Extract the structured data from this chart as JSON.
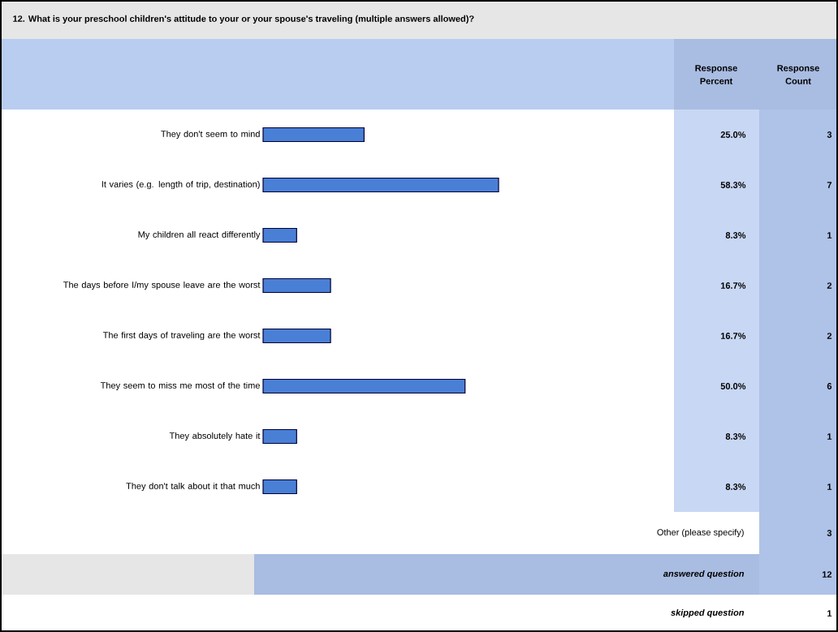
{
  "chart_data": {
    "type": "bar",
    "orientation": "horizontal",
    "title": "12. What is your preschool children's attitude to your or your spouse's traveling (multiple answers allowed)?",
    "categories": [
      "They don't seem to mind",
      "It varies (e.g. length of trip, destination)",
      "My children all react differently",
      "The days before I/my spouse leave are the worst",
      "The first days of traveling are the worst",
      "They seem to miss me most of the time",
      "They absolutely hate it",
      "They don't talk about it that much"
    ],
    "values": [
      25.0,
      58.3,
      8.3,
      16.7,
      16.7,
      50.0,
      8.3,
      8.3
    ],
    "value_labels": [
      "25.0%",
      "58.3%",
      "8.3%",
      "16.7%",
      "16.7%",
      "50.0%",
      "8.3%",
      "8.3%"
    ],
    "color": "#4a7fd6",
    "tick_labels": "y",
    "annotations": [
      "Response Percent",
      "Response Count",
      "3",
      "7",
      "1",
      "2",
      "2",
      "6",
      "1",
      "1",
      "Other (please specify)",
      "3",
      "answered question",
      "12",
      "skipped question",
      "1"
    ]
  }
}
